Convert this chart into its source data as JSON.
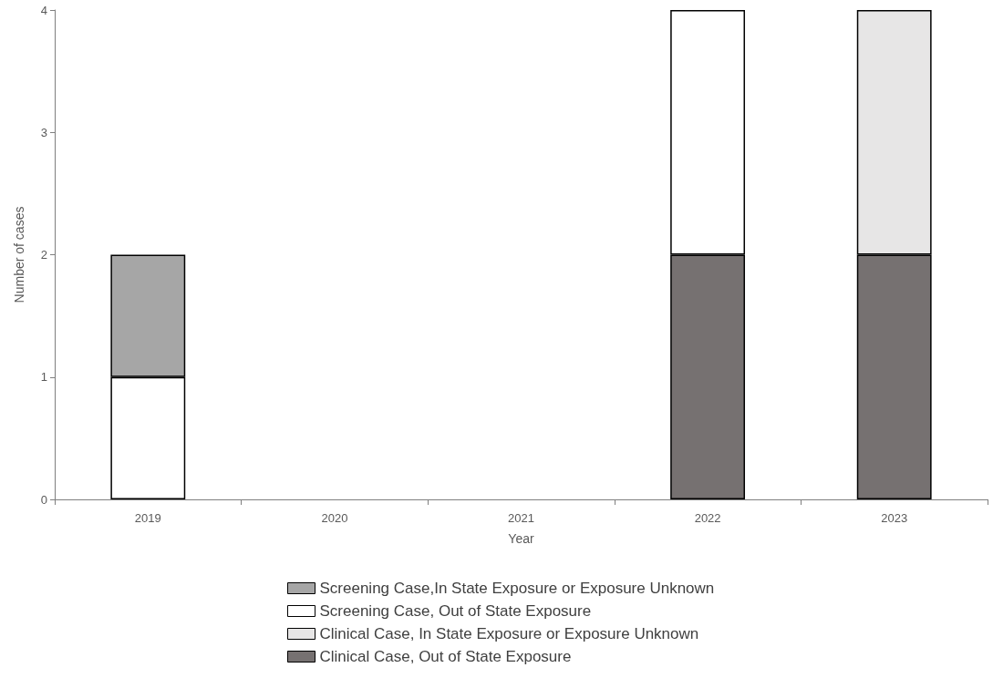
{
  "chart_data": {
    "type": "bar",
    "xlabel": "Year",
    "ylabel": "Number of cases",
    "categories": [
      "2019",
      "2020",
      "2021",
      "2022",
      "2023"
    ],
    "stacked": true,
    "series": [
      {
        "name": "Clinical Case, Out of State Exposure",
        "color": "#767171",
        "values": [
          null,
          null,
          null,
          2,
          2
        ]
      },
      {
        "name": "Clinical Case, In State Exposure or Exposure Unknown",
        "color": "#e7e6e6",
        "values": [
          null,
          null,
          null,
          null,
          2
        ]
      },
      {
        "name": "Screening Case, Out of State Exposure",
        "color": "#ffffff",
        "values": [
          1,
          null,
          null,
          2,
          null
        ]
      },
      {
        "name": "Screening Case,In State Exposure or Exposure Unknown",
        "color": "#a6a6a6",
        "values": [
          1,
          null,
          null,
          null,
          null
        ]
      }
    ],
    "ylim": [
      0,
      4
    ],
    "yticks": [
      0,
      1,
      2,
      3,
      4
    ],
    "grid": false,
    "legend": "bottom"
  }
}
